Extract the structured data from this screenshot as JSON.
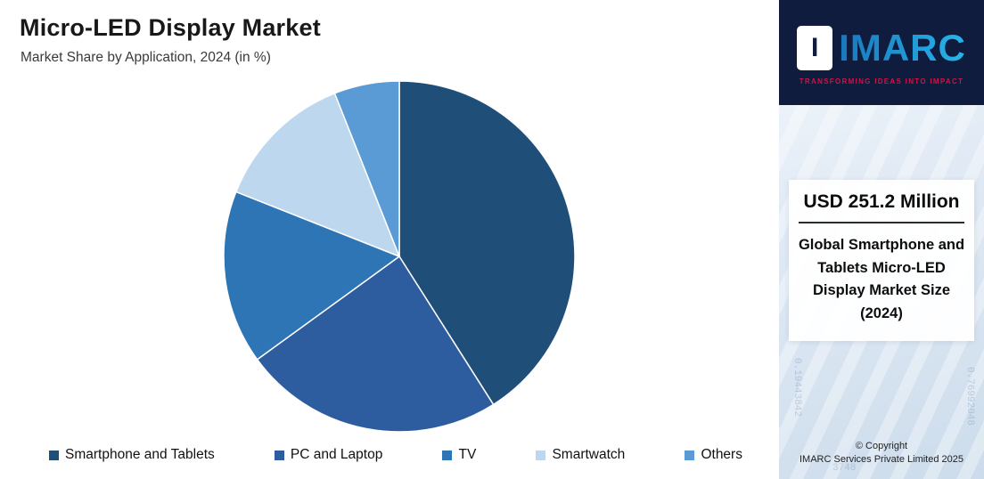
{
  "header": {
    "title": "Micro-LED Display Market",
    "subtitle": "Market Share by Application, 2024 (in %)"
  },
  "chart_data": {
    "type": "pie",
    "title": "Micro-LED Display Market",
    "subtitle": "Market Share by Application, 2024 (in %)",
    "labels": [
      "Smartphone and Tablets",
      "PC and Laptop",
      "TV",
      "Smartwatch",
      "Others"
    ],
    "values": [
      41,
      24,
      16,
      13,
      6
    ],
    "colors": [
      "#1f4e79",
      "#2d5d9e",
      "#2e75b6",
      "#bdd7ee",
      "#5b9bd5"
    ],
    "legend_position": "bottom",
    "start_angle_deg": 0,
    "direction": "clockwise",
    "value_labels_shown": false
  },
  "sidebar": {
    "logo": {
      "tile_letter": "I",
      "text": "IMARC",
      "tagline": "TRANSFORMING IDEAS INTO IMPACT"
    },
    "stat": {
      "value": "USD 251.2 Million",
      "description": "Global Smartphone and Tablets Micro-LED Display Market Size (2024)"
    },
    "copyright": {
      "line1": "© Copyright",
      "line2": "IMARC Services Private Limited 2025"
    },
    "texture": [
      "0.76992048",
      "0.19443842",
      "3748",
      "0.0 0.3 2.0"
    ],
    "colors": {
      "navy": "#0f1c3e",
      "accent": "#1fa3e0",
      "tagline_red": "#d11242"
    }
  }
}
